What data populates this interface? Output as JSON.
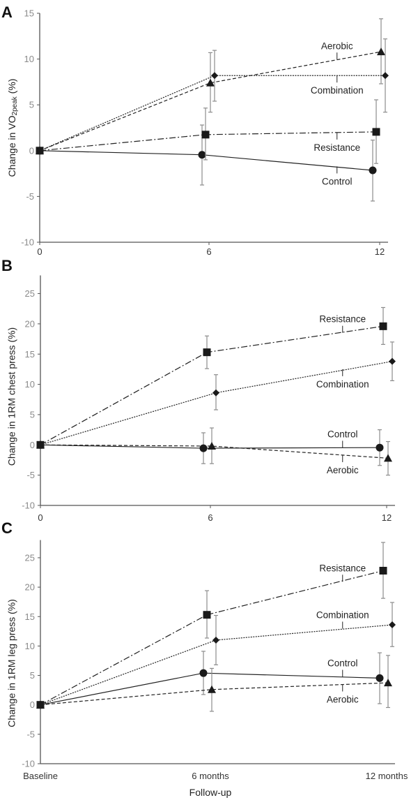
{
  "chart_data": [
    {
      "panel": "A",
      "type": "line",
      "title": "",
      "xlabel": "",
      "ylabel": "Change in VO2peak (%)",
      "ylabel_main": "Change in VO",
      "ylabel_sub": "2peak",
      "ylabel_tail": " (%)",
      "x": [
        0,
        6,
        12
      ],
      "xtick_labels": [
        "0",
        "6",
        "12"
      ],
      "ylim": [
        -10,
        15
      ],
      "yticks": [
        15,
        10,
        5,
        0,
        -5,
        -10
      ],
      "grid": false,
      "series": [
        {
          "name": "Control",
          "marker": "circle",
          "line": "solid",
          "values": [
            0,
            -0.45,
            -2.15
          ],
          "err_upper": [
            0,
            2.8,
            1.15
          ],
          "err_lower": [
            0,
            -3.75,
            -5.5
          ]
        },
        {
          "name": "Resistance",
          "marker": "square",
          "line": "dashdot",
          "values": [
            0,
            1.75,
            2.05
          ],
          "err_upper": [
            0,
            4.65,
            5.55
          ],
          "err_lower": [
            0,
            -1.0,
            -1.4
          ]
        },
        {
          "name": "Aerobic",
          "marker": "triangle",
          "line": "dashed",
          "values": [
            0,
            7.4,
            10.8
          ],
          "err_upper": [
            0,
            10.7,
            14.4
          ],
          "err_lower": [
            0,
            4.2,
            7.3
          ]
        },
        {
          "name": "Combination",
          "marker": "diamond",
          "line": "dotted",
          "values": [
            0,
            8.2,
            8.2
          ],
          "err_upper": [
            0,
            10.95,
            12.2
          ],
          "err_lower": [
            0,
            5.4,
            4.2
          ]
        }
      ],
      "annotations": [
        {
          "text": "Aerobic",
          "series": "Aerobic",
          "side": "above"
        },
        {
          "text": "Combination",
          "series": "Combination",
          "side": "below"
        },
        {
          "text": "Resistance",
          "series": "Resistance",
          "side": "below"
        },
        {
          "text": "Control",
          "series": "Control",
          "side": "below"
        }
      ]
    },
    {
      "panel": "B",
      "type": "line",
      "title": "",
      "xlabel": "",
      "ylabel": "Change in 1RM chest press (%)",
      "x": [
        0,
        6,
        12
      ],
      "xtick_labels": [
        "0",
        "6",
        "12"
      ],
      "ylim": [
        -10,
        28
      ],
      "yticks": [
        25,
        20,
        15,
        10,
        5,
        0,
        -5,
        -10
      ],
      "grid": false,
      "series": [
        {
          "name": "Control",
          "marker": "circle",
          "line": "solid",
          "values": [
            0,
            -0.55,
            -0.45
          ],
          "err_upper": [
            0,
            2.0,
            2.5
          ],
          "err_lower": [
            0,
            -3.1,
            -3.4
          ]
        },
        {
          "name": "Resistance",
          "marker": "square",
          "line": "dashdot",
          "values": [
            0,
            15.3,
            19.6
          ],
          "err_upper": [
            0,
            18.0,
            22.7
          ],
          "err_lower": [
            0,
            12.6,
            16.6
          ]
        },
        {
          "name": "Aerobic",
          "marker": "triangle",
          "line": "dashed",
          "values": [
            0,
            -0.2,
            -2.2
          ],
          "err_upper": [
            0,
            2.8,
            0.55
          ],
          "err_lower": [
            0,
            -3.1,
            -5.0
          ]
        },
        {
          "name": "Combination",
          "marker": "diamond",
          "line": "dotted",
          "values": [
            0,
            8.6,
            13.8
          ],
          "err_upper": [
            0,
            11.6,
            17.0
          ],
          "err_lower": [
            0,
            5.8,
            10.6
          ]
        }
      ],
      "annotations": [
        {
          "text": "Resistance",
          "series": "Resistance",
          "side": "above"
        },
        {
          "text": "Combination",
          "series": "Combination",
          "side": "below"
        },
        {
          "text": "Control",
          "series": "Control",
          "side": "above"
        },
        {
          "text": "Aerobic",
          "series": "Aerobic",
          "side": "below"
        }
      ]
    },
    {
      "panel": "C",
      "type": "line",
      "title": "",
      "xlabel": "Follow-up",
      "ylabel": "Change in 1RM leg press (%)",
      "x": [
        0,
        6,
        12
      ],
      "xtick_labels": [
        "Baseline",
        "6 months",
        "12 months"
      ],
      "ylim": [
        -10,
        28
      ],
      "yticks": [
        25,
        20,
        15,
        10,
        5,
        0,
        -5,
        -10
      ],
      "grid": false,
      "series": [
        {
          "name": "Control",
          "marker": "circle",
          "line": "solid",
          "values": [
            0,
            5.4,
            4.55
          ],
          "err_upper": [
            0,
            9.1,
            8.85
          ],
          "err_lower": [
            0,
            1.75,
            0.2
          ]
        },
        {
          "name": "Resistance",
          "marker": "square",
          "line": "dashdot",
          "values": [
            0,
            15.3,
            22.8
          ],
          "err_upper": [
            0,
            19.4,
            27.6
          ],
          "err_lower": [
            0,
            11.35,
            18.1
          ]
        },
        {
          "name": "Aerobic",
          "marker": "triangle",
          "line": "dashed",
          "values": [
            0,
            2.6,
            3.75
          ],
          "err_upper": [
            0,
            6.2,
            8.4
          ],
          "err_lower": [
            0,
            -1.1,
            -0.45
          ]
        },
        {
          "name": "Combination",
          "marker": "diamond",
          "line": "dotted",
          "values": [
            0,
            11.0,
            13.6
          ],
          "err_upper": [
            0,
            15.2,
            17.4
          ],
          "err_lower": [
            0,
            6.8,
            9.9
          ]
        }
      ],
      "annotations": [
        {
          "text": "Resistance",
          "series": "Resistance",
          "side": "above"
        },
        {
          "text": "Combination",
          "series": "Combination",
          "side": "above"
        },
        {
          "text": "Control",
          "series": "Control",
          "side": "above"
        },
        {
          "text": "Aerobic",
          "series": "Aerobic",
          "side": "below"
        }
      ]
    }
  ]
}
